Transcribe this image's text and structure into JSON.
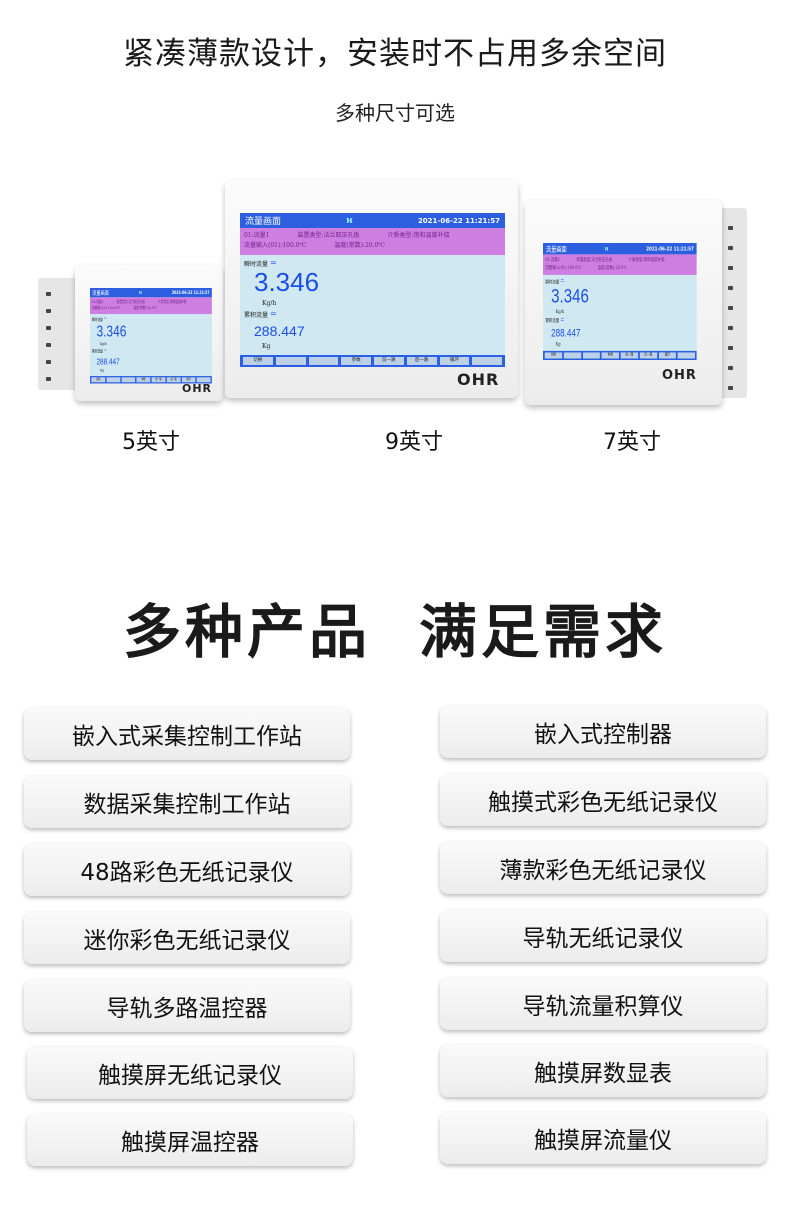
{
  "header": {
    "title": "紧凑薄款设计，安装时不占用多余空间",
    "subtitle": "多种尺寸可选"
  },
  "device": {
    "brand": "OHR",
    "screen": {
      "title": "流量画面",
      "datetime": "2021-06-22 11:21:57",
      "channel": "01:流量1",
      "device_type": "装置类型:法兰取压孔板",
      "medium_type": "介质类型:饱和温度补偿",
      "flow_input": "流量输入(01):100.0℃",
      "temperature": "温度(常数):20.0℃",
      "instant_label": "瞬时流量",
      "equals": "=",
      "instant_value": "3.346",
      "instant_unit": "Kg/h",
      "total_label": "累积流量",
      "total_value": "288.447",
      "total_unit": "Kg",
      "buttons": [
        "切换",
        "",
        "",
        "参数",
        "前一路",
        "后一路",
        "循环",
        ""
      ]
    },
    "colors": {
      "header": "#2b5fe0",
      "info": "#cc7fe0",
      "body": "#cfe8f2"
    }
  },
  "sizes": [
    "5英寸",
    "9英寸",
    "7英寸"
  ],
  "section": {
    "heading_left": "多种产品",
    "heading_right": "满足需求"
  },
  "products_left": [
    "嵌入式采集控制工作站",
    "数据采集控制工作站",
    "48路彩色无纸记录仪",
    "迷你彩色无纸记录仪",
    "导轨多路温控器",
    "触摸屏无纸记录仪",
    "触摸屏温控器"
  ],
  "products_right": [
    "嵌入式控制器",
    "触摸式彩色无纸记录仪",
    "薄款彩色无纸记录仪",
    "导轨无纸记录仪",
    "导轨流量积算仪",
    "触摸屏数显表",
    "触摸屏流量仪"
  ]
}
